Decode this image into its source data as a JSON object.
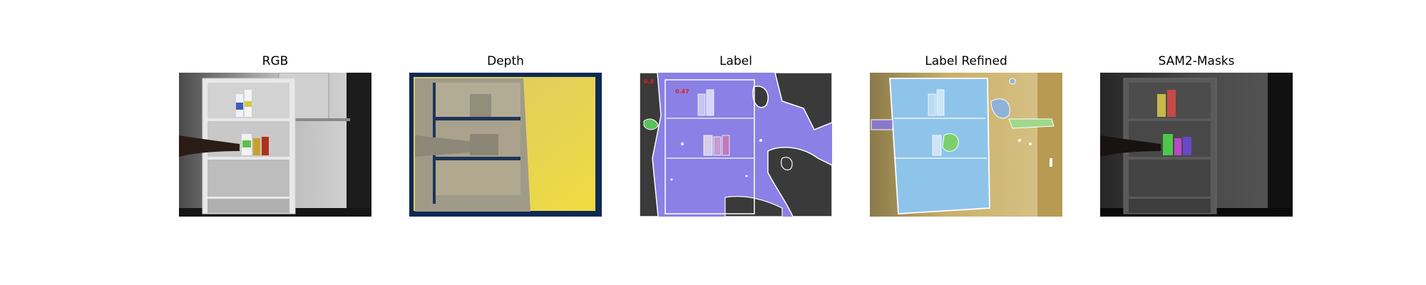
{
  "panels": [
    {
      "title": "RGB"
    },
    {
      "title": "Depth"
    },
    {
      "title": "Label"
    },
    {
      "title": "Label Refined"
    },
    {
      "title": "SAM2-Masks"
    }
  ],
  "label_panel": {
    "annotations": [
      "0.8",
      "0.47"
    ],
    "annotation_color": "#e02020",
    "overlay_color": "#8a80e6",
    "background_color": "#3a3a3a"
  },
  "refined_panel": {
    "overlay_color": "#8fc4ea",
    "background_color": "#c9b06a",
    "accent_color": "#7ccf6a"
  },
  "depth_panel": {
    "near_color": "#9a958a",
    "far_color": "#e6cf52",
    "edge_color": "#0d2a55"
  }
}
